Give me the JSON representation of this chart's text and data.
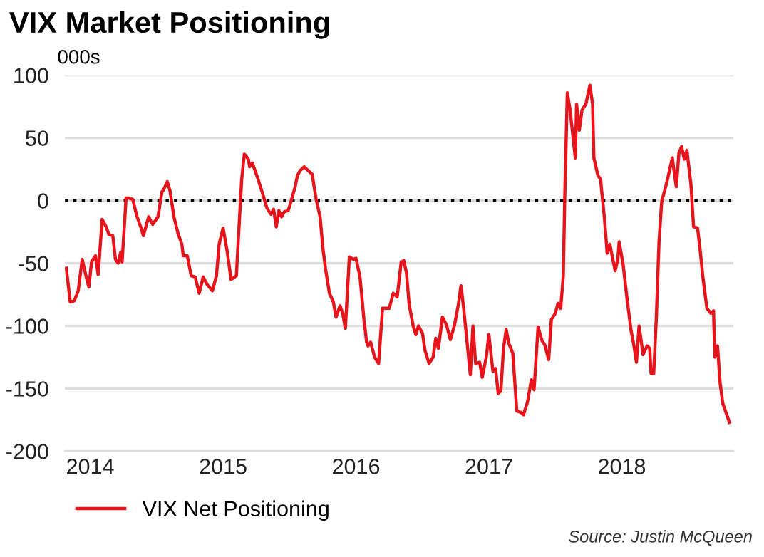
{
  "chart_data": {
    "type": "line",
    "title": "VIX Market Positioning",
    "ylabel": "000s",
    "annotations": [
      "Source: Justin McQueen"
    ],
    "x": [
      2013.82,
      2013.85,
      2013.88,
      2013.91,
      2013.94,
      2013.97,
      2013.99,
      2014.01,
      2014.04,
      2014.06,
      2014.09,
      2014.12,
      2014.14,
      2014.17,
      2014.19,
      2014.21,
      2014.23,
      2014.24,
      2014.27,
      2014.29,
      2014.32,
      2014.35,
      2014.38,
      2014.4,
      2014.44,
      2014.47,
      2014.51,
      2014.54,
      2014.55,
      2014.58,
      2014.6,
      2014.63,
      2014.66,
      2014.69,
      2014.7,
      2014.73,
      2014.76,
      2014.79,
      2014.82,
      2014.85,
      2014.88,
      2014.92,
      2014.95,
      2014.97,
      2015.0,
      2015.03,
      2015.06,
      2015.1,
      2015.11,
      2015.14,
      2015.16,
      2015.19,
      2015.2,
      2015.22,
      2015.26,
      2015.29,
      2015.33,
      2015.36,
      2015.38,
      2015.4,
      2015.42,
      2015.44,
      2015.46,
      2015.49,
      2015.51,
      2015.54,
      2015.56,
      2015.58,
      2015.61,
      2015.64,
      2015.67,
      2015.7,
      2015.73,
      2015.75,
      2015.77,
      2015.8,
      2015.83,
      2015.85,
      2015.88,
      2015.9,
      2015.92,
      2015.95,
      2015.98,
      2016.0,
      2016.03,
      2016.06,
      2016.08,
      2016.09,
      2016.11,
      2016.14,
      2016.17,
      2016.2,
      2016.22,
      2016.25,
      2016.28,
      2016.31,
      2016.34,
      2016.36,
      2016.38,
      2016.4,
      2016.43,
      2016.45,
      2016.47,
      2016.5,
      2016.52,
      2016.55,
      2016.58,
      2016.6,
      2016.62,
      2016.65,
      2016.68,
      2016.71,
      2016.74,
      2016.77,
      2016.79,
      2016.81,
      2016.83,
      2016.86,
      2016.88,
      2016.9,
      2016.93,
      2016.95,
      2016.98,
      2017.0,
      2017.03,
      2017.05,
      2017.07,
      2017.09,
      2017.11,
      2017.13,
      2017.15,
      2017.18,
      2017.21,
      2017.24,
      2017.26,
      2017.29,
      2017.32,
      2017.34,
      2017.37,
      2017.4,
      2017.42,
      2017.45,
      2017.47,
      2017.5,
      2017.52,
      2017.54,
      2017.56,
      2017.57,
      2017.59,
      2017.61,
      2017.65,
      2017.66,
      2017.68,
      2017.7,
      2017.73,
      2017.76,
      2017.78,
      2017.79,
      2017.82,
      2017.84,
      2017.87,
      2017.89,
      2017.91,
      2017.95,
      2017.97,
      2017.98,
      2018.01,
      2018.04,
      2018.07,
      2018.09,
      2018.11,
      2018.13,
      2018.16,
      2018.19,
      2018.21,
      2018.22,
      2018.24,
      2018.26,
      2018.28,
      2018.3,
      2018.34,
      2018.38,
      2018.39,
      2018.41,
      2018.43,
      2018.45,
      2018.47,
      2018.49,
      2018.52,
      2018.54,
      2018.57,
      2018.59,
      2018.61,
      2018.64,
      2018.67,
      2018.69,
      2018.7,
      2018.72,
      2018.74,
      2018.76,
      2018.79,
      2018.81
    ],
    "series": [
      {
        "name": "VIX Net Positioning",
        "color": "#e8141c",
        "values": [
          -54,
          -81,
          -80,
          -72,
          -47,
          -61,
          -69,
          -49,
          -44,
          -59,
          -15,
          -21,
          -27,
          -28,
          -47,
          -50,
          -41,
          -49,
          2,
          2,
          1,
          -12,
          -21,
          -28,
          -13,
          -19,
          -13,
          7,
          8,
          15,
          8,
          -13,
          -26,
          -35,
          -44,
          -44,
          -60,
          -61,
          -74,
          -61,
          -67,
          -72,
          -60,
          -35,
          -22,
          -40,
          -63,
          -60,
          -40,
          17,
          37,
          33,
          27,
          30,
          18,
          8,
          -6,
          -11,
          -7,
          -21,
          -8,
          -13,
          -9,
          -8,
          -1,
          10,
          20,
          24,
          27,
          24,
          21,
          1,
          -13,
          -37,
          -54,
          -74,
          -81,
          -93,
          -84,
          -90,
          -102,
          -45,
          -47,
          -46,
          -61,
          -95,
          -113,
          -116,
          -113,
          -125,
          -130,
          -86,
          -86,
          -86,
          -74,
          -77,
          -49,
          -48,
          -58,
          -83,
          -100,
          -107,
          -100,
          -106,
          -120,
          -130,
          -125,
          -110,
          -118,
          -93,
          -99,
          -111,
          -100,
          -83,
          -68,
          -86,
          -107,
          -139,
          -100,
          -130,
          -129,
          -141,
          -125,
          -107,
          -136,
          -134,
          -154,
          -152,
          -118,
          -103,
          -114,
          -122,
          -168,
          -169,
          -171,
          -161,
          -143,
          -151,
          -101,
          -112,
          -115,
          -127,
          -95,
          -90,
          -82,
          -86,
          -60,
          -1,
          86,
          73,
          34,
          77,
          56,
          72,
          77,
          92,
          77,
          34,
          20,
          17,
          -15,
          -42,
          -35,
          -56,
          -47,
          -33,
          -51,
          -79,
          -104,
          -115,
          -129,
          -100,
          -123,
          -116,
          -118,
          -138,
          -138,
          -93,
          -33,
          -1,
          15,
          34,
          26,
          11,
          38,
          43,
          33,
          40,
          13,
          -21,
          -22,
          -40,
          -61,
          -86,
          -90,
          -88,
          -125,
          -116,
          -146,
          -162,
          -171,
          -177
        ]
      }
    ],
    "xlim": [
      2013.81,
      2018.84
    ],
    "xticks": [
      2014,
      2015,
      2016,
      2017,
      2018
    ],
    "ylim": [
      -200,
      100
    ],
    "yticks": [
      -200,
      -150,
      -100,
      -50,
      0,
      50,
      100
    ],
    "ref_lines": [
      {
        "axis": "y",
        "value": 0,
        "color": "#000000",
        "line_style": "dotted"
      }
    ],
    "grid": "y",
    "legend": "bottom left",
    "marker": "none",
    "line_style": "solid"
  }
}
